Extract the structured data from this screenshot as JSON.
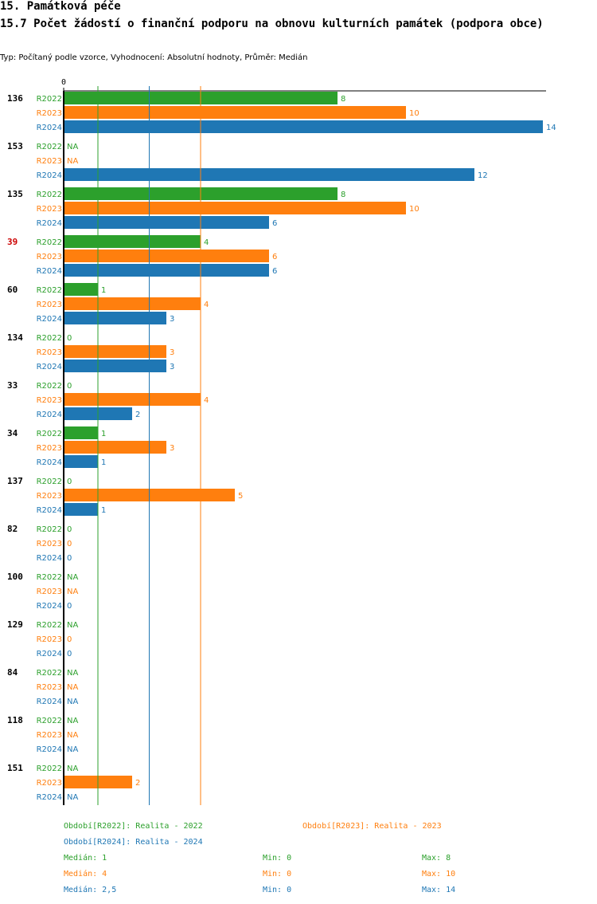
{
  "heading": "15. Památková péče",
  "subheading": "15.7 Počet žádostí o finanční podporu na obnovu kulturních památek (podpora obce)",
  "meta": "Typ: Počítaný podle vzorce, Vyhodnocení: Absolutní hodnoty, Průměr: Medián",
  "colors": {
    "R2022": "#2ca02c",
    "R2023": "#ff7f0e",
    "R2024": "#1f77b4",
    "highlight": "#cc0000"
  },
  "chart_data": {
    "type": "bar",
    "orientation": "horizontal",
    "axis_zero_label": "0",
    "xlim": [
      0,
      14
    ],
    "series_names": [
      "R2022",
      "R2023",
      "R2024"
    ],
    "groups": [
      {
        "label": "136",
        "highlight": false,
        "values": [
          8,
          10,
          14
        ]
      },
      {
        "label": "153",
        "highlight": false,
        "values": [
          null,
          null,
          12
        ]
      },
      {
        "label": "135",
        "highlight": false,
        "values": [
          8,
          10,
          6
        ]
      },
      {
        "label": "39",
        "highlight": true,
        "values": [
          4,
          6,
          6
        ]
      },
      {
        "label": "60",
        "highlight": false,
        "values": [
          1,
          4,
          3
        ]
      },
      {
        "label": "134",
        "highlight": false,
        "values": [
          0,
          3,
          3
        ]
      },
      {
        "label": "33",
        "highlight": false,
        "values": [
          0,
          4,
          2
        ]
      },
      {
        "label": "34",
        "highlight": false,
        "values": [
          1,
          3,
          1
        ]
      },
      {
        "label": "137",
        "highlight": false,
        "values": [
          0,
          5,
          1
        ]
      },
      {
        "label": "82",
        "highlight": false,
        "values": [
          0,
          0,
          0
        ]
      },
      {
        "label": "100",
        "highlight": false,
        "values": [
          null,
          null,
          0
        ]
      },
      {
        "label": "129",
        "highlight": false,
        "values": [
          null,
          0,
          0
        ]
      },
      {
        "label": "84",
        "highlight": false,
        "values": [
          null,
          null,
          null
        ]
      },
      {
        "label": "118",
        "highlight": false,
        "values": [
          null,
          null,
          null
        ]
      },
      {
        "label": "151",
        "highlight": false,
        "values": [
          null,
          2,
          null
        ]
      }
    ],
    "na_label": "NA",
    "reference_lines": [
      {
        "series": "R2022",
        "stat": "median",
        "value": 1
      },
      {
        "series": "R2023",
        "stat": "median",
        "value": 4
      },
      {
        "series": "R2024",
        "stat": "median",
        "value": 2.5
      }
    ]
  },
  "legend": {
    "periods": [
      "Období[R2022]: Realita - 2022",
      "Období[R2023]: Realita - 2023",
      "Období[R2024]: Realita - 2024"
    ],
    "stats": [
      {
        "median": "Medián: 1",
        "min": "Min: 0",
        "max": "Max: 8"
      },
      {
        "median": "Medián: 4",
        "min": "Min: 0",
        "max": "Max: 10"
      },
      {
        "median": "Medián: 2,5",
        "min": "Min: 0",
        "max": "Max: 14"
      }
    ]
  }
}
